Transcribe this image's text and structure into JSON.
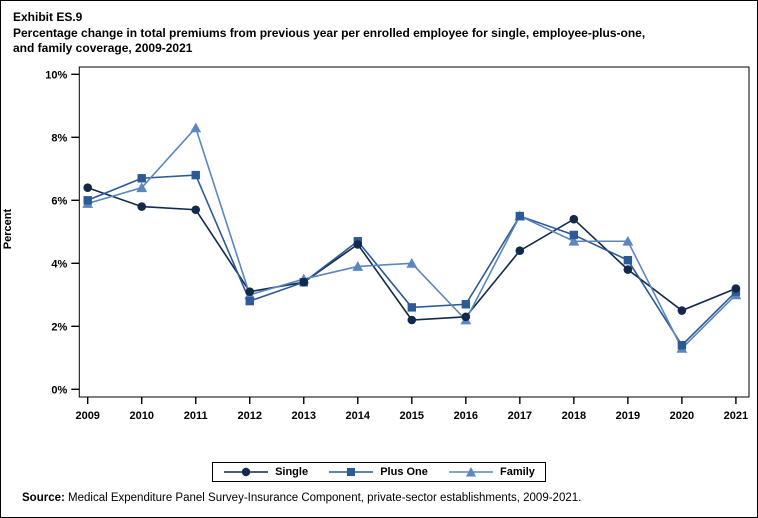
{
  "title": {
    "exhibit": "Exhibit ES.9",
    "line1": "Percentage change in total premiums from previous year per enrolled employee for single, employee-plus-one,",
    "line2": "and family coverage,  2009-2021"
  },
  "source": {
    "label": "Source:",
    "text": " Medical Expenditure Panel Survey-Insurance Component, private-sector establishments, 2009-2021."
  },
  "chart_data": {
    "type": "line",
    "title": "Percentage change in total premiums from previous year per enrolled employee for single, employee-plus-one, and family coverage, 2009-2021",
    "categories": [
      2009,
      2010,
      2011,
      2012,
      2013,
      2014,
      2015,
      2016,
      2017,
      2018,
      2019,
      2020,
      2021
    ],
    "series": [
      {
        "name": "Single",
        "marker": "circle",
        "color": "#12294B",
        "values": [
          6.4,
          5.8,
          5.7,
          3.1,
          3.4,
          4.6,
          2.2,
          2.3,
          4.4,
          5.4,
          3.8,
          2.5,
          3.2
        ]
      },
      {
        "name": "Plus One",
        "marker": "square",
        "color": "#2C5A96",
        "values": [
          6.0,
          6.7,
          6.8,
          2.8,
          3.4,
          4.7,
          2.6,
          2.7,
          5.5,
          4.9,
          4.1,
          1.4,
          3.1
        ]
      },
      {
        "name": "Family",
        "marker": "triangle",
        "color": "#5B87BE",
        "values": [
          5.9,
          6.4,
          8.3,
          3.0,
          3.5,
          3.9,
          4.0,
          2.2,
          5.5,
          4.7,
          4.7,
          1.3,
          3.0
        ]
      }
    ],
    "xlabel": "",
    "ylabel": "Percent",
    "ylim": [
      0,
      10
    ],
    "ytick_step": 2,
    "ytick_suffix": "%",
    "grid": false,
    "legend_position": "bottom"
  }
}
